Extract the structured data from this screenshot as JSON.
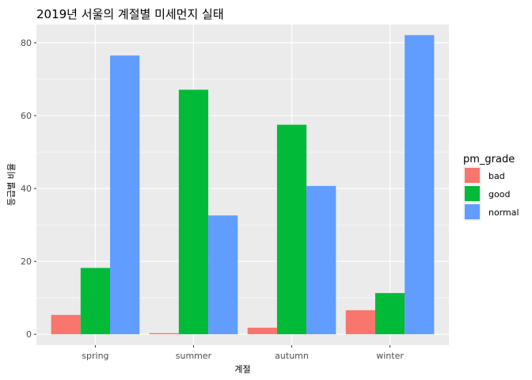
{
  "chart_data": {
    "type": "bar",
    "title": "2019년 서울의 계절별 미세먼지 실태",
    "xlabel": "계절",
    "ylabel": "등급별 비율",
    "categories": [
      "spring",
      "summer",
      "autumn",
      "winter"
    ],
    "series": [
      {
        "name": "bad",
        "values": [
          5.3,
          0.3,
          1.8,
          6.6
        ],
        "color": "#F8766D"
      },
      {
        "name": "good",
        "values": [
          18.2,
          67.1,
          57.5,
          11.3
        ],
        "color": "#00BA38"
      },
      {
        "name": "normal",
        "values": [
          76.5,
          32.6,
          40.7,
          82.1
        ],
        "color": "#619CFF"
      }
    ],
    "ylim": [
      -3,
      85
    ],
    "yticks": [
      0,
      20,
      40,
      60,
      80
    ],
    "grid": true,
    "legend": {
      "title": "pm_grade",
      "position": "right"
    },
    "panel_background": "#EBEBEB"
  }
}
